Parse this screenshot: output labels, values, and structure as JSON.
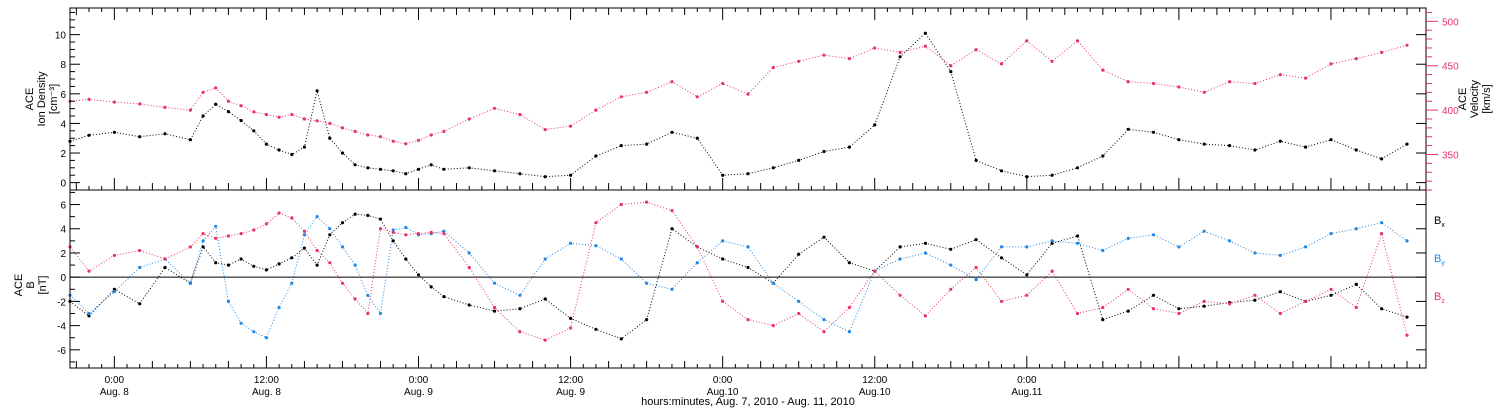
{
  "xlabel": "hours:minutes, Aug.  7, 2010  -  Aug. 11, 2010",
  "x_ticks": [
    {
      "time": "0:00",
      "date": "Aug. 8"
    },
    {
      "time": "12:00",
      "date": "Aug. 8"
    },
    {
      "time": "0:00",
      "date": "Aug. 9"
    },
    {
      "time": "12:00",
      "date": "Aug. 9"
    },
    {
      "time": "0:00",
      "date": "Aug.10"
    },
    {
      "time": "12:00",
      "date": "Aug.10"
    },
    {
      "time": "0:00",
      "date": "Aug.11"
    }
  ],
  "top_panel": {
    "left_label": [
      "ACE",
      "Ion Density",
      "[cm⁻³]"
    ],
    "right_label": [
      "ACE",
      "Velocity",
      "[km/s]"
    ],
    "left_ticks": [
      "0",
      "2",
      "4",
      "6",
      "8",
      "10"
    ],
    "right_ticks": [
      "350",
      "400",
      "450",
      "500"
    ]
  },
  "bottom_panel": {
    "left_label": [
      "ACE",
      "B",
      "[nT]"
    ],
    "left_ticks": [
      "-6",
      "-4",
      "-2",
      "0",
      "2",
      "4",
      "6"
    ],
    "legend": [
      "B",
      "B",
      "B"
    ],
    "legend_subscripts": [
      "x",
      "y",
      "z"
    ]
  },
  "colors": {
    "density": "#000000",
    "velocity": "#e8336a",
    "bx": "#000000",
    "by": "#1f88e6",
    "bz": "#e8336a",
    "axis": "#000000"
  },
  "chart_data": [
    {
      "type": "scatter",
      "panel": "top",
      "xlabel": "hours:minutes, Aug.  7, 2010  -  Aug. 11, 2010",
      "x_unit": "hours since Aug. 7 0:00",
      "xlim": [
        20.5,
        127.5
      ],
      "ylabel": "ACE Ion Density [cm⁻³]",
      "ylim": [
        -0.5,
        11.8
      ],
      "y2label": "ACE Velocity [km/s]",
      "y2lim": [
        310,
        515
      ],
      "series": [
        {
          "name": "ACE Ion Density",
          "axis": "left",
          "color": "#000000",
          "x": [
            20.5,
            22,
            24,
            26,
            28,
            30,
            31,
            32,
            33,
            34,
            35,
            36,
            37,
            38,
            39,
            40,
            41,
            42,
            43,
            44,
            45,
            46,
            47,
            48,
            49,
            50,
            52,
            54,
            56,
            58,
            60,
            62,
            64,
            66,
            68,
            70,
            72,
            74,
            76,
            78,
            80,
            82,
            84,
            86,
            88,
            90,
            92,
            94,
            96,
            98,
            100,
            102,
            104,
            106,
            108,
            110,
            112,
            114,
            116,
            118,
            120,
            122,
            124,
            126
          ],
          "y": [
            2.8,
            3.2,
            3.4,
            3.1,
            3.3,
            2.9,
            4.5,
            5.3,
            4.8,
            4.2,
            3.5,
            2.6,
            2.2,
            1.9,
            2.4,
            6.2,
            3.0,
            2.0,
            1.2,
            1.0,
            0.9,
            0.8,
            0.6,
            0.9,
            1.2,
            0.9,
            1.0,
            0.8,
            0.6,
            0.4,
            0.5,
            1.8,
            2.5,
            2.6,
            3.4,
            3.0,
            0.5,
            0.6,
            1.0,
            1.5,
            2.1,
            2.4,
            3.9,
            8.5,
            10.1,
            7.5,
            1.5,
            0.8,
            0.4,
            0.5,
            1.0,
            1.8,
            3.6,
            3.4,
            2.9,
            2.6,
            2.5,
            2.2,
            2.8,
            2.4,
            2.9,
            2.2,
            1.6,
            2.6
          ]
        },
        {
          "name": "ACE Velocity",
          "axis": "right",
          "color": "#e8336a",
          "x": [
            20.5,
            22,
            24,
            26,
            28,
            30,
            31,
            32,
            33,
            34,
            35,
            36,
            37,
            38,
            39,
            40,
            41,
            42,
            43,
            44,
            45,
            46,
            47,
            48,
            49,
            50,
            52,
            54,
            56,
            58,
            60,
            62,
            64,
            66,
            68,
            70,
            72,
            74,
            76,
            78,
            80,
            82,
            84,
            86,
            88,
            90,
            92,
            94,
            96,
            98,
            100,
            102,
            104,
            106,
            108,
            110,
            112,
            114,
            116,
            118,
            120,
            122,
            124,
            126
          ],
          "y": [
            410,
            412,
            409,
            407,
            403,
            400,
            420,
            425,
            410,
            405,
            398,
            395,
            392,
            395,
            390,
            388,
            385,
            380,
            376,
            372,
            370,
            365,
            362,
            366,
            372,
            376,
            390,
            402,
            395,
            378,
            382,
            400,
            415,
            420,
            432,
            415,
            430,
            418,
            448,
            455,
            462,
            458,
            470,
            465,
            472,
            450,
            468,
            452,
            478,
            455,
            478,
            445,
            432,
            430,
            426,
            420,
            432,
            430,
            440,
            436,
            452,
            458,
            465,
            473
          ]
        }
      ]
    },
    {
      "type": "scatter",
      "panel": "bottom",
      "xlabel": "hours:minutes, Aug.  7, 2010  -  Aug. 11, 2010",
      "x_unit": "hours since Aug. 7 0:00",
      "xlim": [
        20.5,
        127.5
      ],
      "ylabel": "ACE B [nT]",
      "ylim": [
        -7.5,
        7.2
      ],
      "series": [
        {
          "name": "Bx",
          "color": "#000000",
          "x": [
            20.5,
            22,
            24,
            26,
            28,
            30,
            31,
            32,
            33,
            34,
            35,
            36,
            37,
            38,
            39,
            40,
            41,
            42,
            43,
            44,
            45,
            46,
            47,
            48,
            49,
            50,
            52,
            54,
            56,
            58,
            60,
            62,
            64,
            66,
            68,
            70,
            72,
            74,
            76,
            78,
            80,
            82,
            84,
            86,
            88,
            90,
            92,
            94,
            96,
            98,
            100,
            102,
            104,
            106,
            108,
            110,
            112,
            114,
            116,
            118,
            120,
            122,
            124,
            126
          ],
          "y": [
            -2.0,
            -3.2,
            -1.0,
            -2.2,
            0.8,
            -0.5,
            2.5,
            1.2,
            1.0,
            1.5,
            0.9,
            0.6,
            1.1,
            1.6,
            2.4,
            1.0,
            3.5,
            4.5,
            5.2,
            5.1,
            4.8,
            3.0,
            1.5,
            0.2,
            -0.8,
            -1.6,
            -2.3,
            -2.8,
            -2.6,
            -1.8,
            -3.4,
            -4.3,
            -5.1,
            -3.5,
            4.0,
            2.5,
            1.5,
            0.8,
            -0.5,
            1.9,
            3.3,
            1.2,
            0.5,
            2.5,
            2.8,
            2.3,
            3.1,
            1.6,
            0.2,
            2.8,
            3.4,
            -3.5,
            -2.8,
            -1.5,
            -2.6,
            -2.4,
            -2.1,
            -1.9,
            -1.2,
            -2.0,
            -1.5,
            -0.6,
            -2.6,
            -3.3
          ]
        },
        {
          "name": "By",
          "color": "#1f88e6",
          "x": [
            20.5,
            22,
            24,
            26,
            28,
            30,
            31,
            32,
            33,
            34,
            35,
            36,
            37,
            38,
            39,
            40,
            41,
            42,
            43,
            44,
            45,
            46,
            47,
            48,
            49,
            50,
            52,
            54,
            56,
            58,
            60,
            62,
            64,
            66,
            68,
            70,
            72,
            74,
            76,
            78,
            80,
            82,
            84,
            86,
            88,
            90,
            92,
            94,
            96,
            98,
            100,
            102,
            104,
            106,
            108,
            110,
            112,
            114,
            116,
            118,
            120,
            122,
            124,
            126
          ],
          "y": [
            -1.5,
            -3.0,
            -1.2,
            0.8,
            1.5,
            -0.5,
            3.0,
            4.2,
            -2.0,
            -3.8,
            -4.5,
            -5.0,
            -2.5,
            -0.5,
            3.5,
            5.0,
            4.0,
            2.5,
            1.0,
            -1.5,
            -3.0,
            3.9,
            4.1,
            3.5,
            3.6,
            3.8,
            2.0,
            -0.5,
            -1.5,
            1.5,
            2.8,
            2.6,
            1.5,
            -0.5,
            -1.0,
            1.2,
            3.0,
            2.5,
            -0.5,
            -2.0,
            -3.5,
            -4.5,
            0.5,
            1.5,
            2.0,
            1.0,
            -0.2,
            2.5,
            2.5,
            3.0,
            2.8,
            2.2,
            3.2,
            3.5,
            2.5,
            3.8,
            3.0,
            2.0,
            1.8,
            2.5,
            3.6,
            4.0,
            4.5,
            3.0
          ]
        },
        {
          "name": "Bz",
          "color": "#e8336a",
          "x": [
            20.5,
            22,
            24,
            26,
            28,
            30,
            31,
            32,
            33,
            34,
            35,
            36,
            37,
            38,
            39,
            40,
            41,
            42,
            43,
            44,
            45,
            46,
            47,
            48,
            49,
            50,
            52,
            54,
            56,
            58,
            60,
            62,
            64,
            66,
            68,
            70,
            72,
            74,
            76,
            78,
            80,
            82,
            84,
            86,
            88,
            90,
            92,
            94,
            96,
            98,
            100,
            102,
            104,
            106,
            108,
            110,
            112,
            114,
            116,
            118,
            120,
            122,
            124,
            126
          ],
          "y": [
            2.5,
            0.5,
            1.8,
            2.2,
            1.5,
            2.5,
            3.6,
            3.2,
            3.4,
            3.6,
            3.9,
            4.4,
            5.3,
            4.9,
            3.8,
            2.2,
            1.2,
            -0.5,
            -1.8,
            -3.0,
            4.0,
            3.7,
            3.5,
            3.6,
            3.7,
            3.6,
            0.8,
            -2.5,
            -4.5,
            -5.2,
            -4.2,
            4.5,
            6.0,
            6.2,
            5.5,
            2.5,
            -2.0,
            -3.5,
            -4.0,
            -3.0,
            -4.5,
            -2.5,
            0.5,
            -1.5,
            -3.2,
            -1.0,
            0.8,
            -2.0,
            -1.5,
            0.5,
            -3.0,
            -2.5,
            -1.0,
            -2.6,
            -3.0,
            -2.0,
            -2.2,
            -1.5,
            -3.0,
            -2.0,
            -1.0,
            -2.5,
            3.6,
            -4.8
          ]
        }
      ]
    }
  ]
}
